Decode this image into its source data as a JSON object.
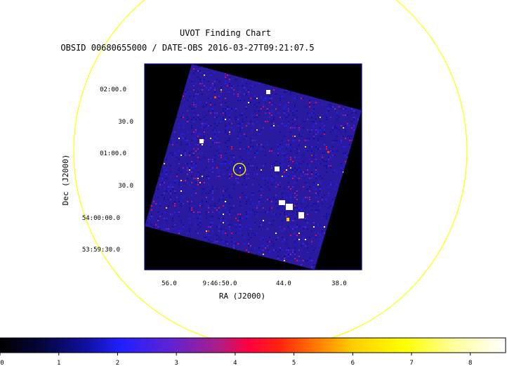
{
  "title": "UVOT Finding Chart",
  "subtitle": "OBSID 00680655000 / DATE-OBS 2016-03-27T09:21:07.5",
  "axes": {
    "xlabel": "RA (J2000)",
    "ylabel": "Dec (J2000)",
    "ra_ticks": [
      "56.0",
      "9:46:50.0",
      "44.0",
      "38.0"
    ],
    "dec_ticks": [
      "02:00.0",
      "30.0",
      "01:00.0",
      "30.0",
      "54:00:00.0",
      "53:59:30.0"
    ]
  },
  "colorbar": {
    "ticks": [
      "0",
      "1",
      "2",
      "3",
      "4",
      "5",
      "6",
      "7",
      "8"
    ],
    "values": [
      0,
      1,
      2,
      3,
      4,
      5,
      6,
      7,
      8
    ],
    "range": [
      0,
      8.6
    ],
    "colormap": [
      "#000000",
      "#1010a0",
      "#2020ff",
      "#8020c0",
      "#ff0040",
      "#ff4000",
      "#ffd000",
      "#ffff00",
      "#ffffff"
    ]
  },
  "colors": {
    "marker": "#ffff00",
    "frame": "#000080",
    "background_field": "#2a1aa0"
  }
}
